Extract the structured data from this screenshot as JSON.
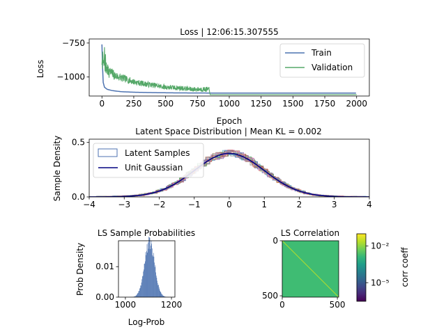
{
  "figure": {
    "background": "#ffffff"
  },
  "chart_data": [
    {
      "id": "loss",
      "type": "line",
      "title": "Loss | 12:06:15.307555",
      "xlabel": "Epoch",
      "ylabel": "Loss",
      "xlim": [
        -100,
        2100
      ],
      "ylim": [
        -1140,
        -720
      ],
      "xticks": [
        0,
        250,
        500,
        750,
        1000,
        1250,
        1500,
        1750,
        2000
      ],
      "xtick_labels": [
        "0",
        "250",
        "500",
        "750",
        "1000",
        "1250",
        "1500",
        "1750",
        "2000"
      ],
      "yticks": [
        -750,
        -1000
      ],
      "ytick_labels": [
        "−750",
        "−1000"
      ],
      "legend": {
        "position": "upper-right"
      },
      "series": [
        {
          "name": "Train",
          "color": "#4c72b0",
          "x": [
            0,
            5,
            10,
            20,
            40,
            80,
            150,
            250,
            400,
            600,
            850,
            1000,
            1500,
            2000
          ],
          "y": [
            -760,
            -930,
            -1040,
            -1075,
            -1090,
            -1100,
            -1108,
            -1112,
            -1115,
            -1117,
            -1118,
            -1118,
            -1118,
            -1118
          ]
        },
        {
          "name": "Validation",
          "color": "#55a868",
          "x": [
            0,
            10,
            25,
            50,
            75,
            100,
            150,
            200,
            250,
            300,
            400,
            500,
            600,
            700,
            800,
            840,
            850,
            1000,
            1500,
            2000
          ],
          "y": [
            -880,
            -900,
            -920,
            -960,
            -970,
            -990,
            -1005,
            -1020,
            -1035,
            -1045,
            -1060,
            -1075,
            -1080,
            -1090,
            -1090,
            -1092,
            -1130,
            -1130,
            -1130,
            -1130
          ]
        }
      ]
    },
    {
      "id": "latent",
      "type": "line",
      "title": "Latent Space Distribution | Mean KL = 0.002",
      "ylabel": "Sample Density",
      "xlim": [
        -4,
        4
      ],
      "ylim": [
        0,
        0.53
      ],
      "xticks": [
        -4,
        -3,
        -2,
        -1,
        0,
        1,
        2,
        3,
        4
      ],
      "xtick_labels": [
        "−4",
        "−3",
        "−2",
        "−1",
        "0",
        "1",
        "2",
        "3",
        "4"
      ],
      "yticks": [
        0,
        0.5
      ],
      "ytick_labels": [
        "0.0",
        "0.5"
      ],
      "legend": {
        "position": "upper-left"
      },
      "series": [
        {
          "name": "Latent Samples",
          "color": "#4c72b0",
          "style": "step-histogram"
        },
        {
          "name": "Unit Gaussian",
          "color": "#000080",
          "mean": 0,
          "std": 1
        }
      ],
      "histogram_colors": [
        "#4c72b0",
        "#dd8452",
        "#55a868",
        "#c44e52",
        "#8172b3",
        "#937860",
        "#da8bc3",
        "#8c8c8c",
        "#ccb974",
        "#64b5cd"
      ]
    },
    {
      "id": "ls-prob",
      "type": "bar",
      "title": "LS Sample Probabilities",
      "xlabel": "Log-Prob",
      "ylabel": "Prob Density",
      "xlim": [
        970,
        1215
      ],
      "ylim": [
        0,
        0.0185
      ],
      "xticks": [
        1000,
        1200
      ],
      "xtick_labels": [
        "1000",
        "1200"
      ],
      "yticks": [
        0,
        0.01
      ],
      "ytick_labels": [
        "0.00",
        "0.01"
      ],
      "color": "#4c72b0",
      "hist_mean": 1105,
      "hist_std": 22,
      "hist_peak": 0.0178
    },
    {
      "id": "ls-corr",
      "type": "heatmap",
      "title": "LS Correlation",
      "xlim": [
        0,
        512
      ],
      "ylim": [
        512,
        0
      ],
      "xticks": [
        0,
        500
      ],
      "xtick_labels": [
        "0",
        "500"
      ],
      "yticks": [
        0,
        500
      ],
      "ytick_labels": [
        "0",
        "500"
      ],
      "matrix_color": "#3fbc73",
      "diagonal_color": "#b5de2b",
      "colorbar": {
        "label": "corr coeff",
        "scale": "log",
        "ticks": [
          "10⁻²",
          "10⁻⁵"
        ],
        "tick_values": [
          0.01,
          1e-05
        ],
        "range": [
          3e-07,
          0.1
        ],
        "colormap": [
          "#440154",
          "#482878",
          "#3e4989",
          "#31688e",
          "#26828e",
          "#1f9e89",
          "#35b779",
          "#6ece58",
          "#b5de2b",
          "#fde725"
        ]
      }
    }
  ]
}
